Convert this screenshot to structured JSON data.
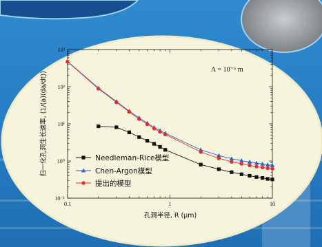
{
  "colors": {
    "background": "#2a7fc4",
    "oval_fill": "#f6f4dc",
    "oval_border": "#f2f0c6",
    "series_black": "#111111",
    "series_blue": "#2f5fc8",
    "series_red": "#e0302c"
  },
  "chart_data": {
    "type": "line",
    "xlabel": "孔洞半径, R (μm)",
    "ylabel": "归一化孔洞生长速率, (1/(a)(da/dt))",
    "annotation": "Λ = 10⁻⁶ m",
    "x_scale": "log",
    "y_scale": "log",
    "xlim": [
      0.1,
      10
    ],
    "ylim": [
      0.1,
      1000
    ],
    "x_ticks": [
      "0.1",
      "1",
      "10"
    ],
    "y_ticks": [
      "10⁻¹",
      "10⁰",
      "10¹",
      "10²",
      "10³"
    ],
    "grid": false,
    "legend_position": "bottom-left",
    "series": [
      {
        "name": "Needleman-Rice模型",
        "marker": "square",
        "x": [
          0.2,
          0.3,
          0.4,
          0.5,
          0.6,
          0.7,
          0.8,
          0.9,
          2,
          3,
          4,
          5,
          6,
          7,
          8,
          9,
          10
        ],
        "y": [
          8.6,
          8.1,
          5.9,
          4.4,
          3.5,
          2.9,
          2.4,
          2.0,
          0.8,
          0.6,
          0.5,
          0.44,
          0.4,
          0.37,
          0.35,
          0.33,
          0.32
        ]
      },
      {
        "name": "Chen-Argon模型",
        "marker": "triangle",
        "x": [
          0.1,
          0.2,
          0.3,
          0.4,
          0.5,
          0.6,
          0.7,
          0.8,
          0.9,
          2,
          3,
          4,
          5,
          6,
          7,
          8,
          9,
          10
        ],
        "y": [
          480,
          92,
          40,
          22,
          14.5,
          10.5,
          8.0,
          6.6,
          5.6,
          2.0,
          1.4,
          1.15,
          1.02,
          0.94,
          0.88,
          0.83,
          0.79,
          0.76
        ]
      },
      {
        "name": "提出的模型",
        "marker": "circle",
        "x": [
          0.1,
          0.2,
          0.3,
          0.4,
          0.5,
          0.6,
          0.7,
          0.8,
          0.9,
          2,
          3,
          4,
          5,
          6,
          7,
          8,
          9,
          10
        ],
        "y": [
          470,
          88,
          38,
          21,
          13.5,
          9.8,
          7.5,
          6.1,
          5.2,
          1.75,
          1.18,
          0.95,
          0.84,
          0.76,
          0.71,
          0.67,
          0.64,
          0.62
        ]
      }
    ]
  }
}
